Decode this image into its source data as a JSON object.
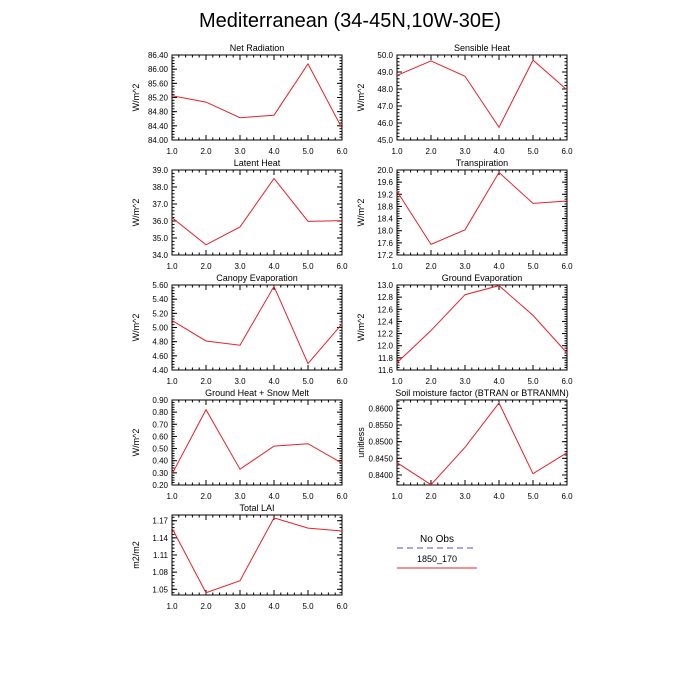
{
  "title": "Mediterranean (34-45N,10W-30E)",
  "colors": {
    "model_line": "#e8202a",
    "obs_line": "#8a8ae0",
    "axis": "#000000"
  },
  "legend": {
    "obs_label": "No Obs",
    "model_label": "1850_170"
  },
  "chart_data": [
    {
      "type": "line",
      "title": "Net Radiation",
      "ylabel": "W/m^2",
      "x": [
        1,
        2,
        3,
        4,
        5,
        6
      ],
      "xlim": [
        1,
        6
      ],
      "xticks": [
        "1.0",
        "2.0",
        "3.0",
        "4.0",
        "5.0",
        "6.0"
      ],
      "ylim": [
        84.0,
        86.4
      ],
      "yticks": [
        "84.00",
        "84.40",
        "84.80",
        "85.20",
        "85.60",
        "86.00",
        "86.40"
      ],
      "series": [
        {
          "values": [
            85.25,
            85.07,
            84.63,
            84.7,
            86.15,
            84.33
          ]
        }
      ]
    },
    {
      "type": "line",
      "title": "Sensible Heat",
      "ylabel": "W/m^2",
      "x": [
        1,
        2,
        3,
        4,
        5,
        6
      ],
      "xlim": [
        1,
        6
      ],
      "xticks": [
        "1.0",
        "2.0",
        "3.0",
        "4.0",
        "5.0",
        "6.0"
      ],
      "ylim": [
        45.0,
        50.0
      ],
      "yticks": [
        "45.0",
        "46.0",
        "47.0",
        "48.0",
        "49.0",
        "50.0"
      ],
      "series": [
        {
          "values": [
            48.8,
            49.65,
            48.75,
            45.75,
            49.7,
            47.95
          ]
        }
      ]
    },
    {
      "type": "line",
      "title": "Latent Heat",
      "ylabel": "W/m^2",
      "x": [
        1,
        2,
        3,
        4,
        5,
        6
      ],
      "xlim": [
        1,
        6
      ],
      "xticks": [
        "1.0",
        "2.0",
        "3.0",
        "4.0",
        "5.0",
        "6.0"
      ],
      "ylim": [
        34.0,
        39.0
      ],
      "yticks": [
        "34.0",
        "35.0",
        "36.0",
        "37.0",
        "38.0",
        "39.0"
      ],
      "series": [
        {
          "values": [
            36.2,
            34.6,
            35.65,
            38.5,
            35.98,
            36.02
          ]
        }
      ]
    },
    {
      "type": "line",
      "title": "Transpiration",
      "ylabel": "W/m^2",
      "x": [
        1,
        2,
        3,
        4,
        5,
        6
      ],
      "xlim": [
        1,
        6
      ],
      "xticks": [
        "1.0",
        "2.0",
        "3.0",
        "4.0",
        "5.0",
        "6.0"
      ],
      "ylim": [
        17.2,
        20.0
      ],
      "yticks": [
        "17.2",
        "17.6",
        "18.0",
        "18.4",
        "18.8",
        "19.2",
        "19.6",
        "20.0"
      ],
      "series": [
        {
          "values": [
            19.3,
            17.55,
            18.03,
            19.92,
            18.9,
            18.98
          ]
        }
      ]
    },
    {
      "type": "line",
      "title": "Canopy Evaporation",
      "ylabel": "W/m^2",
      "x": [
        1,
        2,
        3,
        4,
        5,
        6
      ],
      "xlim": [
        1,
        6
      ],
      "xticks": [
        "1.0",
        "2.0",
        "3.0",
        "4.0",
        "5.0",
        "6.0"
      ],
      "ylim": [
        4.4,
        5.6
      ],
      "yticks": [
        "4.40",
        "4.60",
        "4.80",
        "5.00",
        "5.20",
        "5.40",
        "5.60"
      ],
      "series": [
        {
          "values": [
            5.1,
            4.81,
            4.75,
            5.58,
            4.49,
            5.05
          ]
        }
      ]
    },
    {
      "type": "line",
      "title": "Ground Evaporation",
      "ylabel": "W/m^2",
      "x": [
        1,
        2,
        3,
        4,
        5,
        6
      ],
      "xlim": [
        1,
        6
      ],
      "xticks": [
        "1.0",
        "2.0",
        "3.0",
        "4.0",
        "5.0",
        "6.0"
      ],
      "ylim": [
        11.6,
        13.0
      ],
      "yticks": [
        "11.6",
        "11.8",
        "12.0",
        "12.2",
        "12.4",
        "12.6",
        "12.8",
        "13.0"
      ],
      "series": [
        {
          "values": [
            11.72,
            12.25,
            12.84,
            12.99,
            12.5,
            11.88
          ]
        }
      ]
    },
    {
      "type": "line",
      "title": "Ground Heat + Snow Melt",
      "ylabel": "W/m^2",
      "x": [
        1,
        2,
        3,
        4,
        5,
        6
      ],
      "xlim": [
        1,
        6
      ],
      "xticks": [
        "1.0",
        "2.0",
        "3.0",
        "4.0",
        "5.0",
        "6.0"
      ],
      "ylim": [
        0.2,
        0.9
      ],
      "yticks": [
        "0.20",
        "0.30",
        "0.40",
        "0.50",
        "0.60",
        "0.70",
        "0.80",
        "0.90"
      ],
      "series": [
        {
          "values": [
            0.29,
            0.82,
            0.33,
            0.52,
            0.54,
            0.38
          ]
        }
      ]
    },
    {
      "type": "line",
      "title": "Soil moisture factor (BTRAN or BTRANMN)",
      "ylabel": "unitless",
      "x": [
        1,
        2,
        3,
        4,
        5,
        6
      ],
      "xlim": [
        1,
        6
      ],
      "xticks": [
        "1.0",
        "2.0",
        "3.0",
        "4.0",
        "5.0",
        "6.0"
      ],
      "ylim": [
        0.837,
        0.8625
      ],
      "yticks": [
        "0.8400",
        "0.8450",
        "0.8500",
        "0.8550",
        "0.8600"
      ],
      "series": [
        {
          "values": [
            0.8437,
            0.8371,
            0.8483,
            0.8616,
            0.8404,
            0.8467
          ]
        }
      ]
    },
    {
      "type": "line",
      "title": "Total LAI",
      "ylabel": "m2/m2",
      "x": [
        1,
        2,
        3,
        4,
        5,
        6
      ],
      "xlim": [
        1,
        6
      ],
      "xticks": [
        "1.0",
        "2.0",
        "3.0",
        "4.0",
        "5.0",
        "6.0"
      ],
      "ylim": [
        1.04,
        1.18
      ],
      "yticks": [
        "1.05",
        "1.08",
        "1.11",
        "1.14",
        "1.17"
      ],
      "series": [
        {
          "values": [
            1.157,
            1.044,
            1.065,
            1.175,
            1.157,
            1.152
          ]
        }
      ]
    }
  ]
}
